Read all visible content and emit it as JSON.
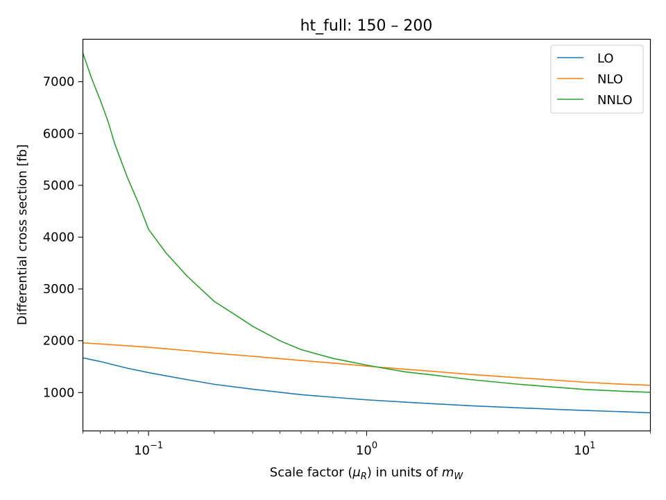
{
  "chart_data": {
    "type": "line",
    "title": "ht_full: 150 – 200",
    "xlabel_parts": [
      "Scale factor (",
      "μ",
      "R",
      ") in units of ",
      "m",
      "W"
    ],
    "ylabel": "Differential cross section [fb]",
    "x_scale": "log",
    "xlim": [
      0.05,
      20
    ],
    "ylim": [
      260,
      7820
    ],
    "x_ticks": [
      {
        "value": 0.1,
        "base": "10",
        "exp": "−1"
      },
      {
        "value": 1,
        "base": "10",
        "exp": "0"
      },
      {
        "value": 10,
        "base": "10",
        "exp": "1"
      }
    ],
    "y_ticks": [
      1000,
      2000,
      3000,
      4000,
      5000,
      6000,
      7000
    ],
    "grid": false,
    "legend_position": "top-right",
    "series": [
      {
        "name": "LO",
        "color": "#1f77b4",
        "x": [
          0.05,
          0.06,
          0.07,
          0.08,
          0.1,
          0.15,
          0.2,
          0.3,
          0.5,
          0.7,
          1,
          1.5,
          2,
          3,
          5,
          7,
          10,
          15,
          20
        ],
        "y": [
          1670,
          1600,
          1530,
          1470,
          1385,
          1250,
          1160,
          1065,
          960,
          910,
          860,
          815,
          785,
          745,
          705,
          680,
          655,
          630,
          610
        ]
      },
      {
        "name": "NLO",
        "color": "#ff7f0e",
        "x": [
          0.05,
          0.07,
          0.1,
          0.15,
          0.2,
          0.3,
          0.5,
          0.7,
          1,
          1.5,
          2,
          3,
          5,
          7,
          10,
          15,
          20
        ],
        "y": [
          1960,
          1920,
          1875,
          1810,
          1760,
          1700,
          1620,
          1570,
          1510,
          1450,
          1410,
          1350,
          1285,
          1245,
          1200,
          1160,
          1140
        ]
      },
      {
        "name": "NNLO",
        "color": "#2ca02c",
        "x": [
          0.05,
          0.055,
          0.06,
          0.065,
          0.07,
          0.08,
          0.09,
          0.1,
          0.12,
          0.15,
          0.2,
          0.25,
          0.3,
          0.4,
          0.5,
          0.7,
          1,
          1.2,
          1.5,
          2,
          3,
          5,
          7,
          10,
          15,
          20
        ],
        "y": [
          7550,
          7050,
          6650,
          6250,
          5800,
          5150,
          4650,
          4150,
          3700,
          3250,
          2760,
          2500,
          2280,
          2000,
          1830,
          1660,
          1530,
          1470,
          1400,
          1340,
          1250,
          1160,
          1110,
          1060,
          1025,
          1005
        ]
      }
    ]
  }
}
